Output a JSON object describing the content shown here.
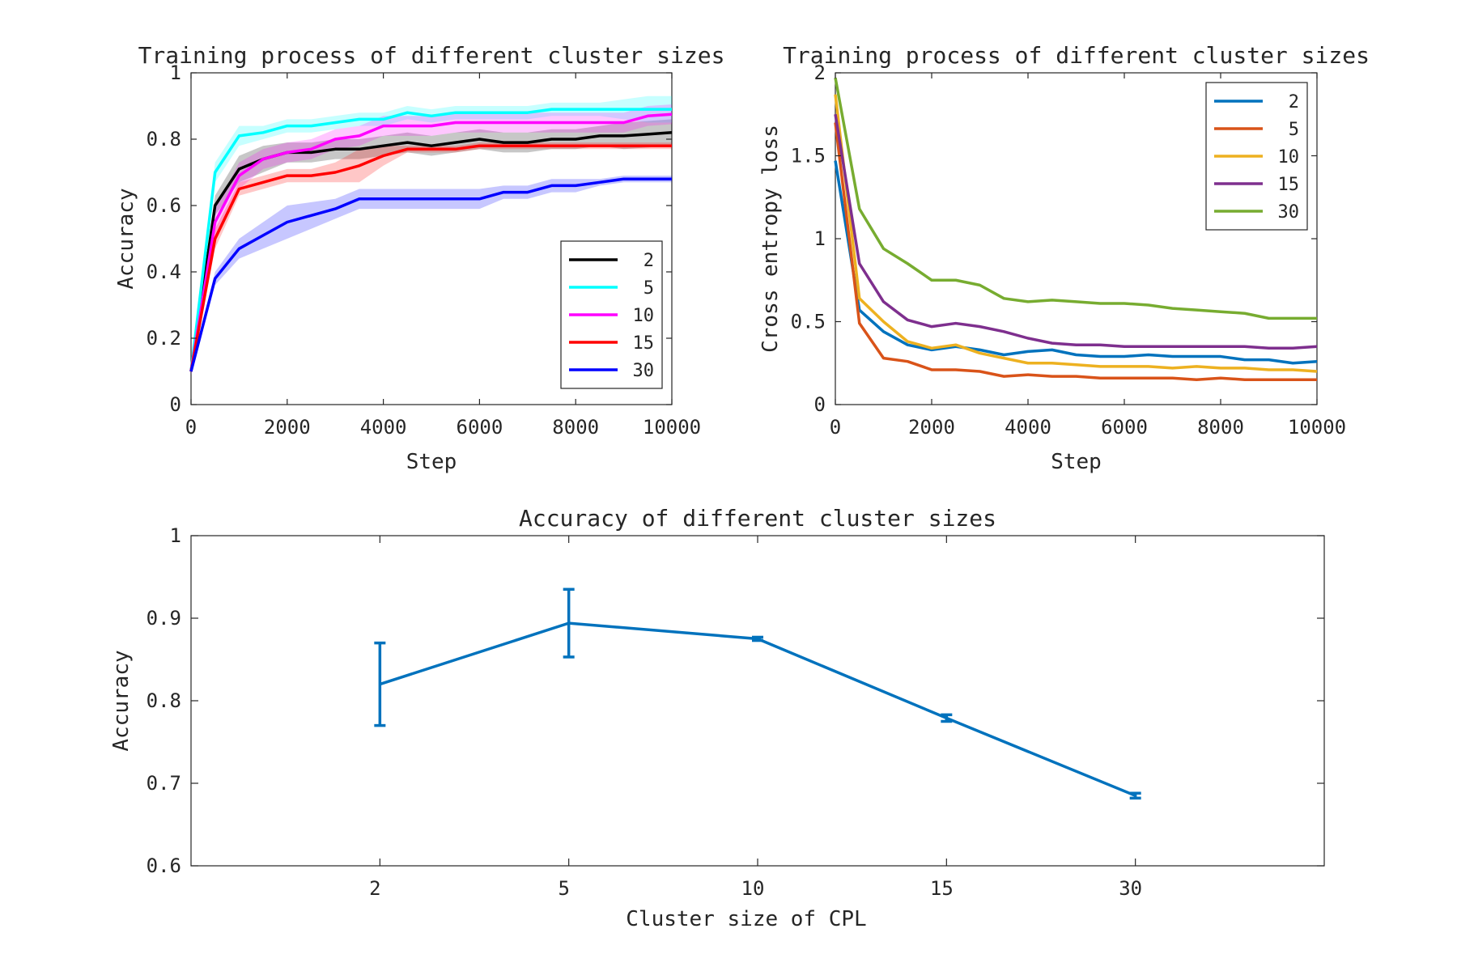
{
  "chart_data": [
    {
      "type": "line",
      "title": "Training process of different cluster sizes",
      "xlabel": "Step",
      "ylabel": "Accuracy",
      "xlim": [
        0,
        10000
      ],
      "ylim": [
        0,
        1
      ],
      "xticks": [
        0,
        2000,
        4000,
        6000,
        8000,
        10000
      ],
      "yticks": [
        0,
        0.2,
        0.4,
        0.6,
        0.8,
        1
      ],
      "xtick_labels": [
        "0",
        "2000",
        "4000",
        "6000",
        "8000",
        "10000"
      ],
      "ytick_labels": [
        "0",
        "0.2",
        "0.4",
        "0.6",
        "0.8",
        "1"
      ],
      "grid": false,
      "legend_position": "bottom-right",
      "x": [
        0,
        500,
        1000,
        1500,
        2000,
        2500,
        3000,
        3500,
        4000,
        4500,
        5000,
        5500,
        6000,
        6500,
        7000,
        7500,
        8000,
        8500,
        9000,
        9500,
        10000
      ],
      "series": [
        {
          "name": "2",
          "color": "#000000",
          "band_color": "#000000",
          "values": [
            0.1,
            0.6,
            0.71,
            0.74,
            0.76,
            0.76,
            0.77,
            0.77,
            0.78,
            0.79,
            0.78,
            0.79,
            0.8,
            0.79,
            0.79,
            0.8,
            0.8,
            0.81,
            0.81,
            0.815,
            0.82
          ],
          "spread": [
            0.01,
            0.03,
            0.04,
            0.04,
            0.03,
            0.03,
            0.03,
            0.03,
            0.03,
            0.03,
            0.03,
            0.03,
            0.03,
            0.03,
            0.03,
            0.03,
            0.03,
            0.03,
            0.04,
            0.04,
            0.04
          ]
        },
        {
          "name": "5",
          "color": "#00ffff",
          "band_color": "#00ffff",
          "values": [
            0.1,
            0.7,
            0.81,
            0.82,
            0.84,
            0.84,
            0.85,
            0.86,
            0.86,
            0.88,
            0.87,
            0.88,
            0.88,
            0.88,
            0.88,
            0.89,
            0.89,
            0.89,
            0.89,
            0.89,
            0.89
          ],
          "spread": [
            0.01,
            0.03,
            0.03,
            0.02,
            0.02,
            0.02,
            0.02,
            0.02,
            0.02,
            0.02,
            0.02,
            0.02,
            0.02,
            0.02,
            0.02,
            0.02,
            0.02,
            0.02,
            0.03,
            0.04,
            0.04
          ]
        },
        {
          "name": "10",
          "color": "#ff00ff",
          "band_color": "#ff00ff",
          "values": [
            0.1,
            0.55,
            0.69,
            0.74,
            0.76,
            0.77,
            0.8,
            0.81,
            0.84,
            0.84,
            0.84,
            0.85,
            0.85,
            0.85,
            0.85,
            0.85,
            0.85,
            0.85,
            0.85,
            0.87,
            0.875
          ],
          "spread": [
            0.01,
            0.04,
            0.04,
            0.03,
            0.03,
            0.03,
            0.03,
            0.03,
            0.03,
            0.03,
            0.03,
            0.03,
            0.03,
            0.03,
            0.03,
            0.03,
            0.03,
            0.03,
            0.03,
            0.03,
            0.03
          ]
        },
        {
          "name": "15",
          "color": "#ff0000",
          "band_color": "#ff0000",
          "values": [
            0.1,
            0.5,
            0.65,
            0.67,
            0.69,
            0.69,
            0.7,
            0.72,
            0.75,
            0.77,
            0.77,
            0.77,
            0.78,
            0.78,
            0.78,
            0.78,
            0.78,
            0.78,
            0.78,
            0.78,
            0.78
          ],
          "spread": [
            0.01,
            0.03,
            0.02,
            0.02,
            0.02,
            0.02,
            0.03,
            0.05,
            0.03,
            0.01,
            0.01,
            0.01,
            0.01,
            0.01,
            0.01,
            0.01,
            0.01,
            0.01,
            0.01,
            0.01,
            0.01
          ]
        },
        {
          "name": "30",
          "color": "#0000ff",
          "band_color": "#0000ff",
          "values": [
            0.1,
            0.38,
            0.47,
            0.51,
            0.55,
            0.57,
            0.59,
            0.62,
            0.62,
            0.62,
            0.62,
            0.62,
            0.62,
            0.64,
            0.64,
            0.66,
            0.66,
            0.67,
            0.68,
            0.68,
            0.68
          ],
          "spread": [
            0.01,
            0.02,
            0.03,
            0.04,
            0.05,
            0.04,
            0.03,
            0.03,
            0.03,
            0.03,
            0.03,
            0.03,
            0.03,
            0.02,
            0.02,
            0.02,
            0.02,
            0.01,
            0.01,
            0.01,
            0.01
          ]
        }
      ]
    },
    {
      "type": "line",
      "title": "Training process of different cluster sizes",
      "xlabel": "Step",
      "ylabel": "Cross entropy loss",
      "xlim": [
        0,
        10000
      ],
      "ylim": [
        0,
        2
      ],
      "xticks": [
        0,
        2000,
        4000,
        6000,
        8000,
        10000
      ],
      "yticks": [
        0,
        0.5,
        1,
        1.5,
        2
      ],
      "xtick_labels": [
        "0",
        "2000",
        "4000",
        "6000",
        "8000",
        "10000"
      ],
      "ytick_labels": [
        "0",
        "0.5",
        "1",
        "1.5",
        "2"
      ],
      "grid": false,
      "legend_position": "top-right",
      "x": [
        0,
        500,
        1000,
        1500,
        2000,
        2500,
        3000,
        3500,
        4000,
        4500,
        5000,
        5500,
        6000,
        6500,
        7000,
        7500,
        8000,
        8500,
        9000,
        9500,
        10000
      ],
      "series": [
        {
          "name": "2",
          "color": "#0072bd",
          "values": [
            1.47,
            0.57,
            0.44,
            0.36,
            0.33,
            0.35,
            0.33,
            0.3,
            0.32,
            0.33,
            0.3,
            0.29,
            0.29,
            0.3,
            0.29,
            0.29,
            0.29,
            0.27,
            0.27,
            0.25,
            0.26
          ]
        },
        {
          "name": "5",
          "color": "#d95319",
          "values": [
            1.7,
            0.49,
            0.28,
            0.26,
            0.21,
            0.21,
            0.2,
            0.17,
            0.18,
            0.17,
            0.17,
            0.16,
            0.16,
            0.16,
            0.16,
            0.15,
            0.16,
            0.15,
            0.15,
            0.15,
            0.15
          ]
        },
        {
          "name": "10",
          "color": "#edb120",
          "values": [
            1.87,
            0.64,
            0.5,
            0.38,
            0.34,
            0.36,
            0.31,
            0.28,
            0.25,
            0.25,
            0.24,
            0.23,
            0.23,
            0.23,
            0.22,
            0.23,
            0.22,
            0.22,
            0.21,
            0.21,
            0.2
          ]
        },
        {
          "name": "15",
          "color": "#7e2f8e",
          "values": [
            1.75,
            0.85,
            0.62,
            0.51,
            0.47,
            0.49,
            0.47,
            0.44,
            0.4,
            0.37,
            0.36,
            0.36,
            0.35,
            0.35,
            0.35,
            0.35,
            0.35,
            0.35,
            0.34,
            0.34,
            0.35
          ]
        },
        {
          "name": "30",
          "color": "#77ac30",
          "values": [
            1.97,
            1.18,
            0.94,
            0.85,
            0.75,
            0.75,
            0.72,
            0.64,
            0.62,
            0.63,
            0.62,
            0.61,
            0.61,
            0.6,
            0.58,
            0.57,
            0.56,
            0.55,
            0.52,
            0.52,
            0.52
          ]
        }
      ]
    },
    {
      "type": "line",
      "title": "Accuracy of different cluster sizes",
      "xlabel": "Cluster size of CPL",
      "ylabel": "Accuracy",
      "ylim": [
        0.6,
        1
      ],
      "yticks": [
        0.6,
        0.7,
        0.8,
        0.9,
        1
      ],
      "ytick_labels": [
        "0.6",
        "0.7",
        "0.8",
        "0.9",
        "1"
      ],
      "categories": [
        "2",
        "5",
        "10",
        "15",
        "30"
      ],
      "grid": false,
      "series": [
        {
          "color": "#0072bd",
          "values": [
            0.82,
            0.894,
            0.875,
            0.779,
            0.685
          ],
          "error": [
            0.05,
            0.041,
            0.002,
            0.004,
            0.003
          ]
        }
      ]
    }
  ]
}
